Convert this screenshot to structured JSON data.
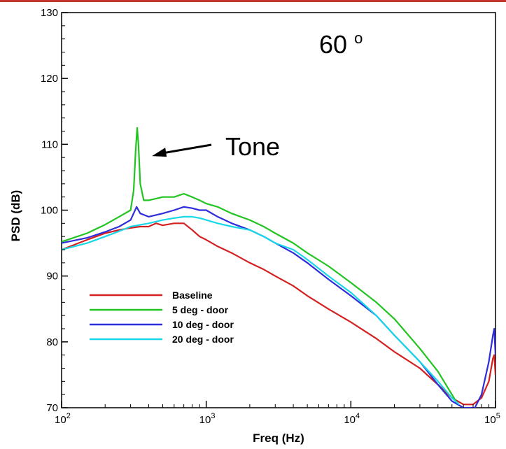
{
  "colors": {
    "topbar": "#c0392b"
  },
  "chart_data": {
    "type": "line",
    "title": "",
    "xlabel": "Freq (Hz)",
    "ylabel": "PSD (dB)",
    "xscale": "log",
    "xlim": [
      100,
      100000
    ],
    "ylim": [
      70,
      130
    ],
    "xticks": [
      100,
      1000,
      10000,
      100000
    ],
    "xtick_labels": [
      {
        "base": "10",
        "exp": "2"
      },
      {
        "base": "10",
        "exp": "3"
      },
      {
        "base": "10",
        "exp": "4"
      },
      {
        "base": "10",
        "exp": "5"
      }
    ],
    "yticks": [
      70,
      80,
      90,
      100,
      110,
      120,
      130
    ],
    "ytick_labels": [
      "70",
      "80",
      "90",
      "100",
      "110",
      "120",
      "130"
    ],
    "grid": false,
    "legend_position": "bottom-left",
    "annotations": [
      {
        "text": "Tone",
        "arrow_to": [
          330,
          108
        ]
      },
      {
        "text": "60",
        "superscript": "o"
      }
    ],
    "series": [
      {
        "name": "Baseline",
        "color": "#d42020",
        "points": [
          [
            100,
            94
          ],
          [
            150,
            95.5
          ],
          [
            200,
            96.5
          ],
          [
            250,
            97
          ],
          [
            300,
            97.3
          ],
          [
            350,
            97.5
          ],
          [
            400,
            97.5
          ],
          [
            450,
            98
          ],
          [
            500,
            97.7
          ],
          [
            600,
            98
          ],
          [
            700,
            98
          ],
          [
            800,
            97
          ],
          [
            900,
            96
          ],
          [
            1000,
            95.5
          ],
          [
            1200,
            94.5
          ],
          [
            1500,
            93.5
          ],
          [
            2000,
            92
          ],
          [
            2500,
            91
          ],
          [
            3000,
            90
          ],
          [
            4000,
            88.5
          ],
          [
            5000,
            87
          ],
          [
            7000,
            85
          ],
          [
            10000,
            83
          ],
          [
            15000,
            80.5
          ],
          [
            20000,
            78.5
          ],
          [
            30000,
            76
          ],
          [
            40000,
            73.5
          ],
          [
            50000,
            71.5
          ],
          [
            60000,
            70.5
          ],
          [
            70000,
            70.5
          ],
          [
            80000,
            71.5
          ],
          [
            90000,
            74
          ],
          [
            96000,
            77.5
          ],
          [
            98000,
            78
          ],
          [
            100000,
            75
          ]
        ]
      },
      {
        "name": "5 deg - door",
        "color": "#22c422",
        "points": [
          [
            100,
            95.2
          ],
          [
            150,
            96.5
          ],
          [
            200,
            97.8
          ],
          [
            250,
            99
          ],
          [
            300,
            100
          ],
          [
            315,
            103
          ],
          [
            325,
            109
          ],
          [
            333,
            112.5
          ],
          [
            340,
            110
          ],
          [
            350,
            104
          ],
          [
            370,
            101.5
          ],
          [
            400,
            101.5
          ],
          [
            500,
            102
          ],
          [
            600,
            102
          ],
          [
            700,
            102.5
          ],
          [
            800,
            102
          ],
          [
            900,
            101.5
          ],
          [
            1000,
            101
          ],
          [
            1200,
            100.5
          ],
          [
            1500,
            99.5
          ],
          [
            2000,
            98.5
          ],
          [
            2500,
            97.5
          ],
          [
            3000,
            96.5
          ],
          [
            4000,
            95
          ],
          [
            5000,
            93.5
          ],
          [
            7000,
            91.5
          ],
          [
            10000,
            89
          ],
          [
            15000,
            86
          ],
          [
            20000,
            83.5
          ],
          [
            30000,
            79
          ],
          [
            40000,
            75.5
          ],
          [
            50000,
            72
          ],
          [
            55000,
            70.5
          ]
        ]
      },
      {
        "name": "10 deg - door",
        "color": "#2d2ddc",
        "points": [
          [
            100,
            95
          ],
          [
            150,
            95.8
          ],
          [
            200,
            96.7
          ],
          [
            250,
            97.5
          ],
          [
            300,
            98.5
          ],
          [
            330,
            100.5
          ],
          [
            350,
            99.5
          ],
          [
            400,
            99
          ],
          [
            500,
            99.5
          ],
          [
            600,
            100
          ],
          [
            700,
            100.5
          ],
          [
            800,
            100.3
          ],
          [
            900,
            100
          ],
          [
            1000,
            100
          ],
          [
            1200,
            99
          ],
          [
            1500,
            98
          ],
          [
            2000,
            97
          ],
          [
            2500,
            96
          ],
          [
            3000,
            95
          ],
          [
            4000,
            93.5
          ],
          [
            5000,
            92
          ],
          [
            7000,
            89.5
          ],
          [
            10000,
            87
          ],
          [
            15000,
            84
          ],
          [
            20000,
            81
          ],
          [
            30000,
            77
          ],
          [
            40000,
            73.5
          ],
          [
            50000,
            71
          ],
          [
            60000,
            70
          ],
          [
            72000,
            70
          ],
          [
            80000,
            72
          ],
          [
            90000,
            77
          ],
          [
            96000,
            81
          ],
          [
            98000,
            82
          ],
          [
            100000,
            78
          ]
        ]
      },
      {
        "name": "20 deg - door",
        "color": "#18d8e8",
        "points": [
          [
            100,
            94
          ],
          [
            150,
            95
          ],
          [
            200,
            96
          ],
          [
            250,
            96.8
          ],
          [
            300,
            97.5
          ],
          [
            400,
            98
          ],
          [
            500,
            98.5
          ],
          [
            600,
            98.8
          ],
          [
            700,
            99
          ],
          [
            800,
            99
          ],
          [
            900,
            98.8
          ],
          [
            1000,
            98.5
          ],
          [
            1200,
            98
          ],
          [
            1500,
            97.5
          ],
          [
            2000,
            97
          ],
          [
            2500,
            96
          ],
          [
            3000,
            95
          ],
          [
            4000,
            94
          ],
          [
            5000,
            92.5
          ],
          [
            7000,
            90
          ],
          [
            10000,
            87.5
          ],
          [
            15000,
            84
          ],
          [
            20000,
            81
          ],
          [
            30000,
            77
          ],
          [
            40000,
            74
          ],
          [
            50000,
            71.5
          ],
          [
            56000,
            70.5
          ]
        ]
      }
    ]
  }
}
